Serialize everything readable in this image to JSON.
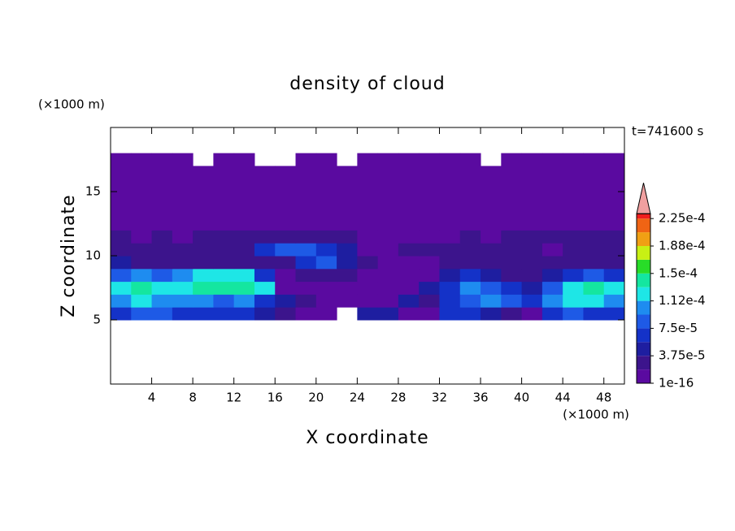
{
  "chart_data": {
    "type": "contour",
    "title": "density of cloud",
    "time_label": "t=741600 s",
    "xlabel": "X coordinate",
    "ylabel": "Z coordinate",
    "x_unit": "(×1000 m)",
    "y_unit": "(×1000 m)",
    "xlim": [
      0,
      50
    ],
    "ylim": [
      0,
      20
    ],
    "xticks": [
      4,
      8,
      12,
      16,
      20,
      24,
      28,
      32,
      36,
      40,
      44,
      48
    ],
    "yticks": [
      5,
      10,
      15
    ],
    "x": [
      0,
      2,
      4,
      6,
      8,
      10,
      12,
      14,
      16,
      18,
      20,
      22,
      24,
      26,
      28,
      30,
      32,
      34,
      36,
      38,
      40,
      42,
      44,
      46,
      48,
      50
    ],
    "z": [
      5,
      6,
      7,
      8,
      9,
      10,
      11,
      12,
      13,
      14,
      15,
      16,
      17,
      18
    ],
    "values": [
      [
        6.5e-05,
        8.5e-05,
        8.5e-05,
        6.5e-05,
        6.5e-05,
        6.5e-05,
        6.5e-05,
        4.5e-05,
        3e-05,
        1e-05,
        1e-05,
        null,
        4.5e-05,
        4.5e-05,
        1e-05,
        1e-05,
        6.5e-05,
        6.5e-05,
        4.5e-05,
        3e-05,
        1e-05,
        6.5e-05,
        8.5e-05,
        6.5e-05,
        6.5e-05
      ],
      [
        0.000105,
        0.00012,
        0.000105,
        0.000105,
        0.000105,
        8.5e-05,
        0.000105,
        6.5e-05,
        4.5e-05,
        3e-05,
        1e-05,
        1e-05,
        1e-05,
        1e-05,
        4.5e-05,
        3e-05,
        6.5e-05,
        8.5e-05,
        0.000105,
        8.5e-05,
        6.5e-05,
        0.000105,
        0.00012,
        0.00012,
        0.000105
      ],
      [
        0.00012,
        0.00014,
        0.00012,
        0.00012,
        0.00014,
        0.00014,
        0.00014,
        0.00012,
        1e-05,
        1e-05,
        1e-05,
        1e-05,
        1e-05,
        1e-05,
        1e-05,
        4.5e-05,
        6.5e-05,
        0.000105,
        8.5e-05,
        6.5e-05,
        4.5e-05,
        8.5e-05,
        0.00012,
        0.00014,
        0.00012
      ],
      [
        8.5e-05,
        0.000105,
        8.5e-05,
        0.000105,
        0.00012,
        0.00012,
        0.00012,
        6.5e-05,
        1e-05,
        3e-05,
        3e-05,
        3e-05,
        1e-05,
        1e-05,
        1e-05,
        1e-05,
        4.5e-05,
        6.5e-05,
        4.5e-05,
        3e-05,
        3e-05,
        4.5e-05,
        6.5e-05,
        8.5e-05,
        6.5e-05
      ],
      [
        4.5e-05,
        3e-05,
        3e-05,
        3e-05,
        3e-05,
        3e-05,
        3e-05,
        3e-05,
        3e-05,
        6.5e-05,
        8.5e-05,
        4.5e-05,
        3e-05,
        1e-05,
        1e-05,
        1e-05,
        3e-05,
        3e-05,
        3e-05,
        3e-05,
        3e-05,
        3e-05,
        3e-05,
        3e-05,
        3e-05
      ],
      [
        3e-05,
        3e-05,
        3e-05,
        3e-05,
        3e-05,
        3e-05,
        3e-05,
        6.5e-05,
        8.5e-05,
        8.5e-05,
        6.5e-05,
        4.5e-05,
        1e-05,
        1e-05,
        3e-05,
        3e-05,
        3e-05,
        3e-05,
        3e-05,
        3e-05,
        3e-05,
        1e-05,
        3e-05,
        3e-05,
        3e-05
      ],
      [
        3e-05,
        1e-05,
        3e-05,
        1e-05,
        3e-05,
        3e-05,
        3e-05,
        3e-05,
        3e-05,
        3e-05,
        3e-05,
        3e-05,
        1e-05,
        1e-05,
        1e-05,
        1e-05,
        1e-05,
        3e-05,
        1e-05,
        3e-05,
        3e-05,
        3e-05,
        3e-05,
        3e-05,
        3e-05
      ],
      [
        1e-05,
        1e-05,
        1e-05,
        1e-05,
        1e-05,
        1e-05,
        1e-05,
        1e-05,
        1e-05,
        1e-05,
        1e-05,
        1e-05,
        1e-05,
        1e-05,
        1e-05,
        1e-05,
        1e-05,
        1e-05,
        1e-05,
        1e-05,
        1e-05,
        1e-05,
        1e-05,
        1e-05,
        1e-05
      ],
      [
        1e-05,
        1e-05,
        1e-05,
        1e-05,
        1e-05,
        1e-05,
        1e-05,
        1e-05,
        1e-05,
        1e-05,
        1e-05,
        1e-05,
        1e-05,
        1e-05,
        1e-05,
        1e-05,
        1e-05,
        1e-05,
        1e-05,
        1e-05,
        1e-05,
        1e-05,
        1e-05,
        1e-05,
        1e-05
      ],
      [
        1e-05,
        1e-05,
        1e-05,
        1e-05,
        1e-05,
        1e-05,
        1e-05,
        1e-05,
        1e-05,
        1e-05,
        1e-05,
        1e-05,
        1e-05,
        1e-05,
        1e-05,
        1e-05,
        1e-05,
        1e-05,
        1e-05,
        1e-05,
        1e-05,
        1e-05,
        1e-05,
        1e-05,
        1e-05
      ],
      [
        1e-05,
        1e-05,
        1e-05,
        1e-05,
        1e-05,
        1e-05,
        1e-05,
        1e-05,
        1e-05,
        1e-05,
        1e-05,
        1e-05,
        1e-05,
        1e-05,
        1e-05,
        1e-05,
        1e-05,
        1e-05,
        1e-05,
        1e-05,
        1e-05,
        1e-05,
        1e-05,
        1e-05,
        1e-05
      ],
      [
        1e-05,
        1e-05,
        1e-05,
        1e-05,
        1e-05,
        1e-05,
        1e-05,
        1e-05,
        1e-05,
        1e-05,
        1e-05,
        1e-05,
        1e-05,
        1e-05,
        1e-05,
        1e-05,
        1e-05,
        1e-05,
        1e-05,
        1e-05,
        1e-05,
        1e-05,
        1e-05,
        1e-05,
        1e-05
      ],
      [
        1e-05,
        1e-05,
        1e-05,
        1e-05,
        null,
        1e-05,
        1e-05,
        null,
        null,
        1e-05,
        1e-05,
        null,
        1e-05,
        1e-05,
        1e-05,
        1e-05,
        1e-05,
        1e-05,
        null,
        1e-05,
        1e-05,
        1e-05,
        1e-05,
        1e-05,
        1e-05
      ]
    ],
    "levels": [
      1e-16,
      1.875e-05,
      3.75e-05,
      5.625e-05,
      7.5e-05,
      9.375e-05,
      0.0001125,
      0.00013125,
      0.00015,
      0.00016875,
      0.0001875,
      0.00020625,
      0.000225
    ],
    "colors": [
      "#5a0aa0",
      "#3c148c",
      "#1e1ea0",
      "#1432c8",
      "#1e5ae6",
      "#1e8cf0",
      "#1ee6e6",
      "#14e6a0",
      "#28dc28",
      "#c8f014",
      "#f0a014",
      "#f06414"
    ],
    "over_color": "#f01e1e",
    "extend_color": "#f0a0a0",
    "colorbar_ticks": [
      {
        "value": 1e-16,
        "label": "1e-16"
      },
      {
        "value": 3.75e-05,
        "label": "3.75e-5"
      },
      {
        "value": 7.5e-05,
        "label": "7.5e-5"
      },
      {
        "value": 0.0001125,
        "label": "1.12e-4"
      },
      {
        "value": 0.00015,
        "label": "1.5e-4"
      },
      {
        "value": 0.0001875,
        "label": "1.88e-4"
      },
      {
        "value": 0.000225,
        "label": "2.25e-4"
      }
    ]
  }
}
